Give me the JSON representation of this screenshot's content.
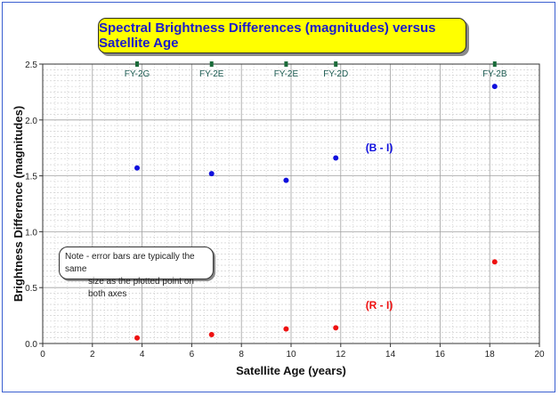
{
  "chart_data": {
    "type": "scatter",
    "title": "Spectral Brightness Differences (magnitudes) versus Satellite Age",
    "xlabel": "Satellite Age (years)",
    "ylabel": "Brightness Difference (magnitudes)",
    "xlim": [
      0,
      20
    ],
    "ylim": [
      0,
      2.5
    ],
    "xticks": [
      "0",
      "2",
      "4",
      "6",
      "8",
      "10",
      "12",
      "14",
      "16",
      "18",
      "20"
    ],
    "yticks": [
      "0.0",
      "0.5",
      "1.0",
      "1.5",
      "2.0",
      "2.5"
    ],
    "grid": true,
    "series": [
      {
        "name": "(B - I)",
        "color": "#1010dd",
        "points": [
          {
            "x": 3.8,
            "y": 1.57
          },
          {
            "x": 6.8,
            "y": 1.52
          },
          {
            "x": 9.8,
            "y": 1.46
          },
          {
            "x": 11.8,
            "y": 1.66
          },
          {
            "x": 18.2,
            "y": 2.3
          }
        ]
      },
      {
        "name": "(R - I)",
        "color": "#ee1111",
        "points": [
          {
            "x": 3.8,
            "y": 0.05
          },
          {
            "x": 6.8,
            "y": 0.08
          },
          {
            "x": 9.8,
            "y": 0.13
          },
          {
            "x": 11.8,
            "y": 0.14
          },
          {
            "x": 18.2,
            "y": 0.73
          }
        ]
      }
    ],
    "satellites": [
      {
        "label": "FY-2G",
        "x": 3.8
      },
      {
        "label": "FY-2E",
        "x": 6.8
      },
      {
        "label": "FY-2E",
        "x": 9.8
      },
      {
        "label": "FY-2D",
        "x": 11.8
      },
      {
        "label": "FY-2B",
        "x": 18.2
      }
    ],
    "series_labels": [
      {
        "text": "(B - I)",
        "x": 13.0,
        "y": 1.72,
        "color": "#1010dd"
      },
      {
        "text": "(R - I)",
        "x": 13.0,
        "y": 0.31,
        "color": "#ee1111"
      }
    ],
    "annotation": {
      "line1": "Note - error bars are typically the same",
      "line2": "size as the plotted point on both axes"
    }
  }
}
